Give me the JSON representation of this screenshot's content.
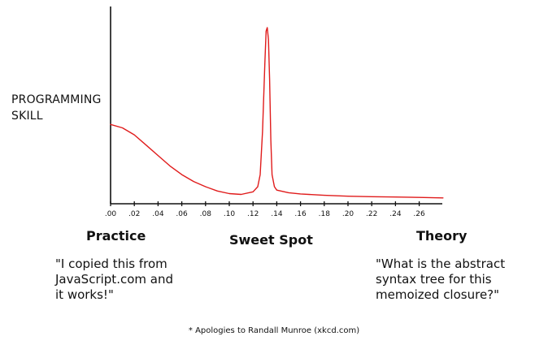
{
  "chart_data": {
    "type": "line",
    "ylabel": "PROGRAMMING\nSKILL",
    "xticks": [
      ".00",
      ".02",
      ".04",
      ".06",
      ".08",
      ".10",
      ".12",
      ".14",
      ".16",
      ".18",
      ".20",
      ".22",
      ".24",
      ".26"
    ],
    "xlim": [
      0,
      0.28
    ],
    "ylim": [
      0,
      10
    ],
    "series": [
      {
        "color": "#e01b1b",
        "x": [
          0.0,
          0.01,
          0.02,
          0.03,
          0.04,
          0.05,
          0.06,
          0.07,
          0.08,
          0.09,
          0.1,
          0.11,
          0.12,
          0.124,
          0.126,
          0.128,
          0.13,
          0.131,
          0.132,
          0.133,
          0.134,
          0.135,
          0.136,
          0.138,
          0.14,
          0.15,
          0.16,
          0.18,
          0.2,
          0.22,
          0.24,
          0.26,
          0.28
        ],
        "y": [
          4.4,
          4.2,
          3.8,
          3.2,
          2.6,
          2.0,
          1.5,
          1.1,
          0.8,
          0.55,
          0.4,
          0.35,
          0.5,
          0.8,
          1.5,
          4.0,
          8.0,
          9.8,
          10.0,
          9.3,
          7.0,
          3.5,
          1.5,
          0.8,
          0.6,
          0.45,
          0.38,
          0.3,
          0.25,
          0.22,
          0.2,
          0.18,
          0.15
        ]
      }
    ],
    "annotations": [
      {
        "label": "Practice",
        "quote": "\"I copied this from\nJavaScript.com and\nit works!\""
      },
      {
        "label": "Sweet Spot"
      },
      {
        "label": "Theory",
        "quote": "\"What is the abstract\nsyntax tree for this\nmemoized closure?\""
      }
    ]
  },
  "footnote": "* Apologies to Randall Munroe (xkcd.com)"
}
